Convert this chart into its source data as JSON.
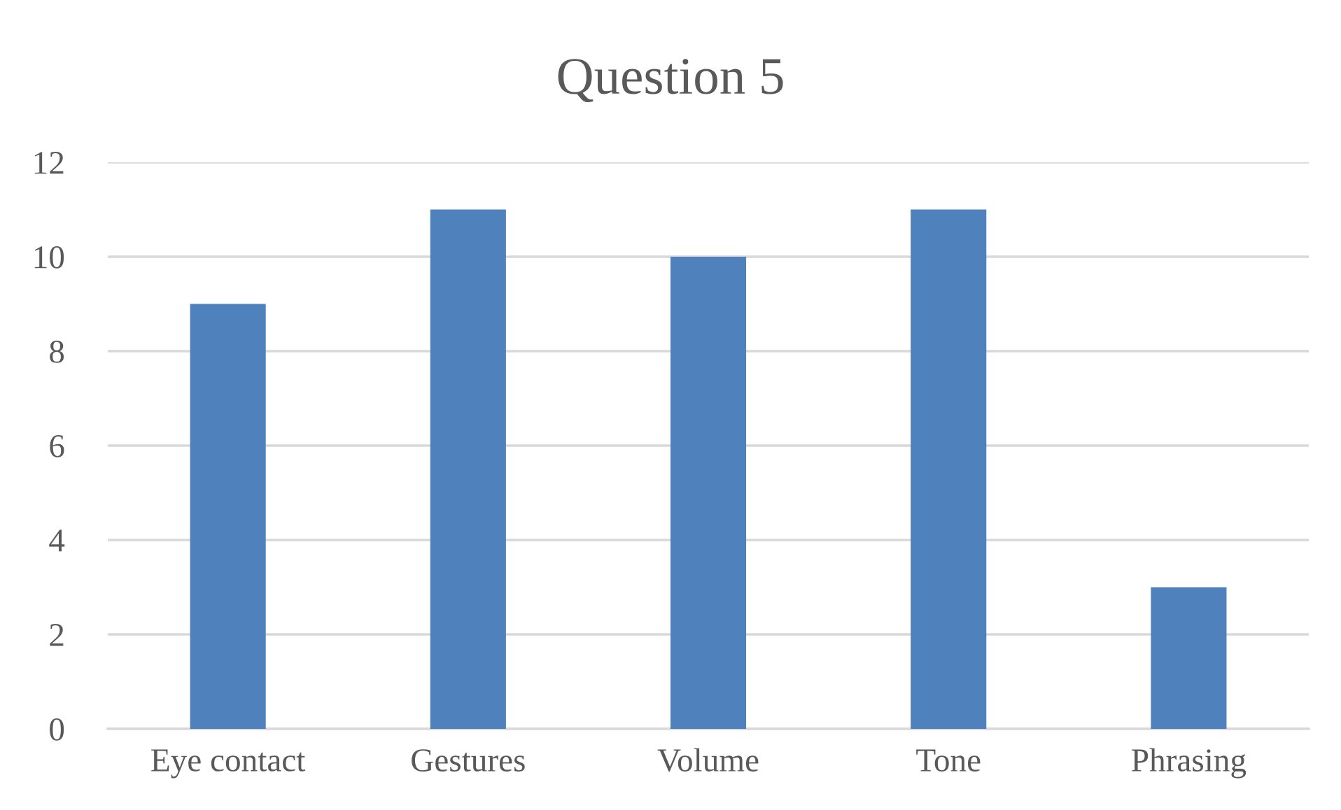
{
  "chart_data": {
    "type": "bar",
    "title": "Question 5",
    "categories": [
      "Eye contact",
      "Gestures",
      "Volume",
      "Tone",
      "Phrasing"
    ],
    "values": [
      9,
      11,
      10,
      11,
      3
    ],
    "color": "#4f81bd",
    "ylim": [
      0,
      12
    ],
    "yticks": [
      0,
      2,
      4,
      6,
      8,
      10,
      12
    ],
    "grid": "y"
  }
}
